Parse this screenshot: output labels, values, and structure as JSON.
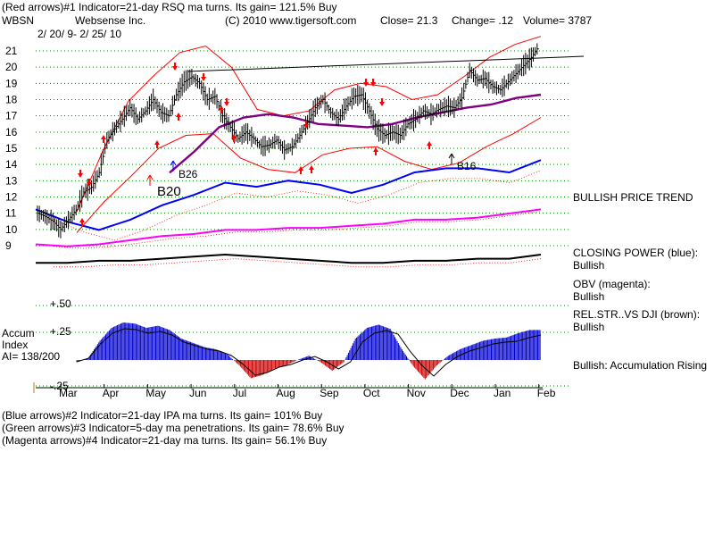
{
  "header": {
    "line1": "(Red arrows)#1 Indicator=21-day RSQ ma turns. Its gain= 121.5% Buy",
    "ticker": "WBSN",
    "company": "Websense Inc.",
    "copyright": "(C) 2010 www.tigersoft.com",
    "close": "Close=  21.3",
    "change": "Change= .12",
    "volume": "Volume= 3787",
    "date_range": "2/ 20/ 9-  2/ 25/ 10"
  },
  "side_labels": {
    "trend": "BULLISH PRICE TREND",
    "cp_title": "CLOSING POWER (blue):",
    "cp_value": "Bullish",
    "obv_title": "OBV (magenta):",
    "obv_value": "Bullish",
    "rs_title": "REL.STR..VS DJI (brown):",
    "rs_value": "Bullish",
    "accum": "Bullish: Accumulation Rising"
  },
  "accum_labels": {
    "line1": "Accum",
    "line2": "Index",
    "line3": "AI= 138/200",
    "plus50": "+.50",
    "plus25": "+.25",
    "minus25": "-.25"
  },
  "footer": {
    "line2": "(Blue arrows)#2 Indicator=21-day IPA ma turns. Its gain= 101% Buy",
    "line3": "(Green arrows)#3 Indicator=5-day ma penetrations. Its gain= 78.6% Buy",
    "line4": "(Magenta arrows)#4 Indicator=21-day ma turns. Its gain= 56.1% Buy"
  },
  "colors": {
    "price": "#000000",
    "band": "#ff0000",
    "ma": "#800080",
    "closing_power": "#0000ff",
    "obv": "#ff00ff",
    "rel_str": "#000000",
    "accum_pos": "#0000cc",
    "accum_neg": "#cc0000",
    "grid": "#008000"
  },
  "chart_data": {
    "type": "line",
    "title": "WBSN Websense Inc.",
    "ylim": [
      9,
      21
    ],
    "y_ticks": [
      9,
      10,
      11,
      12,
      13,
      14,
      15,
      16,
      17,
      18,
      19,
      20,
      21
    ],
    "x_labels": [
      "Mar",
      "Apr",
      "May",
      "Jun",
      "Jul",
      "Aug",
      "Sep",
      "Oct",
      "Nov",
      "Dec",
      "Jan",
      "Feb"
    ],
    "series": [
      {
        "name": "price",
        "values": [
          11.0,
          10.8,
          10.5,
          10.0,
          10.6,
          11.2,
          12.3,
          12.6,
          13.5,
          15.5,
          16.2,
          16.8,
          17.5,
          16.8,
          17.3,
          18.0,
          17.2,
          17.0,
          18.3,
          19.1,
          19.4,
          19.0,
          18.0,
          18.2,
          17.0,
          16.3,
          15.6,
          16.0,
          15.6,
          15.1,
          15.2,
          15.5,
          14.9,
          15.1,
          15.8,
          16.6,
          17.5,
          18.0,
          17.2,
          16.8,
          17.6,
          18.2,
          18.3,
          17.3,
          16.2,
          15.8,
          16.0,
          15.8,
          16.5,
          16.8,
          17.3,
          17.1,
          17.4,
          17.6,
          17.5,
          18.1,
          19.8,
          19.2,
          19.3,
          18.8,
          18.6,
          19.1,
          19.6,
          20.1,
          20.6,
          21.3
        ]
      },
      {
        "name": "upper band",
        "values": [
          11.1,
          14.8,
          17.9,
          19.5,
          20.9,
          21.3,
          20.0,
          17.4,
          17.0,
          17.3,
          18.6,
          19.0,
          18.8,
          18.0,
          18.3,
          19.4,
          20.6,
          21.4,
          21.9
        ]
      },
      {
        "name": "21-day ma",
        "values": [
          13.5,
          14.8,
          16.3,
          16.9,
          17.1,
          16.9,
          16.5,
          16.4,
          16.3,
          16.5,
          16.9,
          17.2,
          17.5,
          17.7,
          18.1,
          18.3
        ]
      },
      {
        "name": "lower band",
        "values": [
          9.8,
          11.7,
          13.3,
          15.0,
          15.8,
          15.9,
          14.4,
          13.7,
          13.5,
          14.6,
          15.0,
          15.1,
          14.2,
          13.7,
          14.1,
          15.1,
          15.9,
          16.9
        ]
      },
      {
        "name": "closing power (blue)",
        "values": [
          0.72,
          0.66,
          0.62,
          0.67,
          0.74,
          0.79,
          0.85,
          0.83,
          0.86,
          0.84,
          0.8,
          0.84,
          0.9,
          0.92,
          0.92,
          0.9,
          0.96
        ]
      },
      {
        "name": "obv (magenta)",
        "values": [
          0.55,
          0.54,
          0.55,
          0.57,
          0.59,
          0.6,
          0.62,
          0.62,
          0.63,
          0.63,
          0.64,
          0.65,
          0.67,
          0.67,
          0.68,
          0.7,
          0.72
        ]
      },
      {
        "name": "rel. str. vs DJI (brown)",
        "values": [
          0.46,
          0.46,
          0.47,
          0.47,
          0.48,
          0.49,
          0.5,
          0.49,
          0.48,
          0.47,
          0.46,
          0.46,
          0.47,
          0.47,
          0.48,
          0.48,
          0.5
        ]
      },
      {
        "name": "accumulation index",
        "values": [
          -0.02,
          0.02,
          0.18,
          0.3,
          0.35,
          0.34,
          0.3,
          0.32,
          0.28,
          0.2,
          0.16,
          0.12,
          0.1,
          0.05,
          -0.05,
          -0.17,
          -0.14,
          -0.08,
          -0.05,
          0.0,
          0.04,
          -0.02,
          -0.1,
          -0.02,
          0.2,
          0.3,
          0.33,
          0.29,
          0.1,
          -0.06,
          -0.18,
          -0.05,
          0.04,
          0.1,
          0.14,
          0.18,
          0.2,
          0.21,
          0.25,
          0.28
        ]
      }
    ],
    "annotations": [
      "B20",
      "B26",
      "B16"
    ],
    "signal_arrows": "red down arrows at tops, red up arrows at bottoms"
  }
}
